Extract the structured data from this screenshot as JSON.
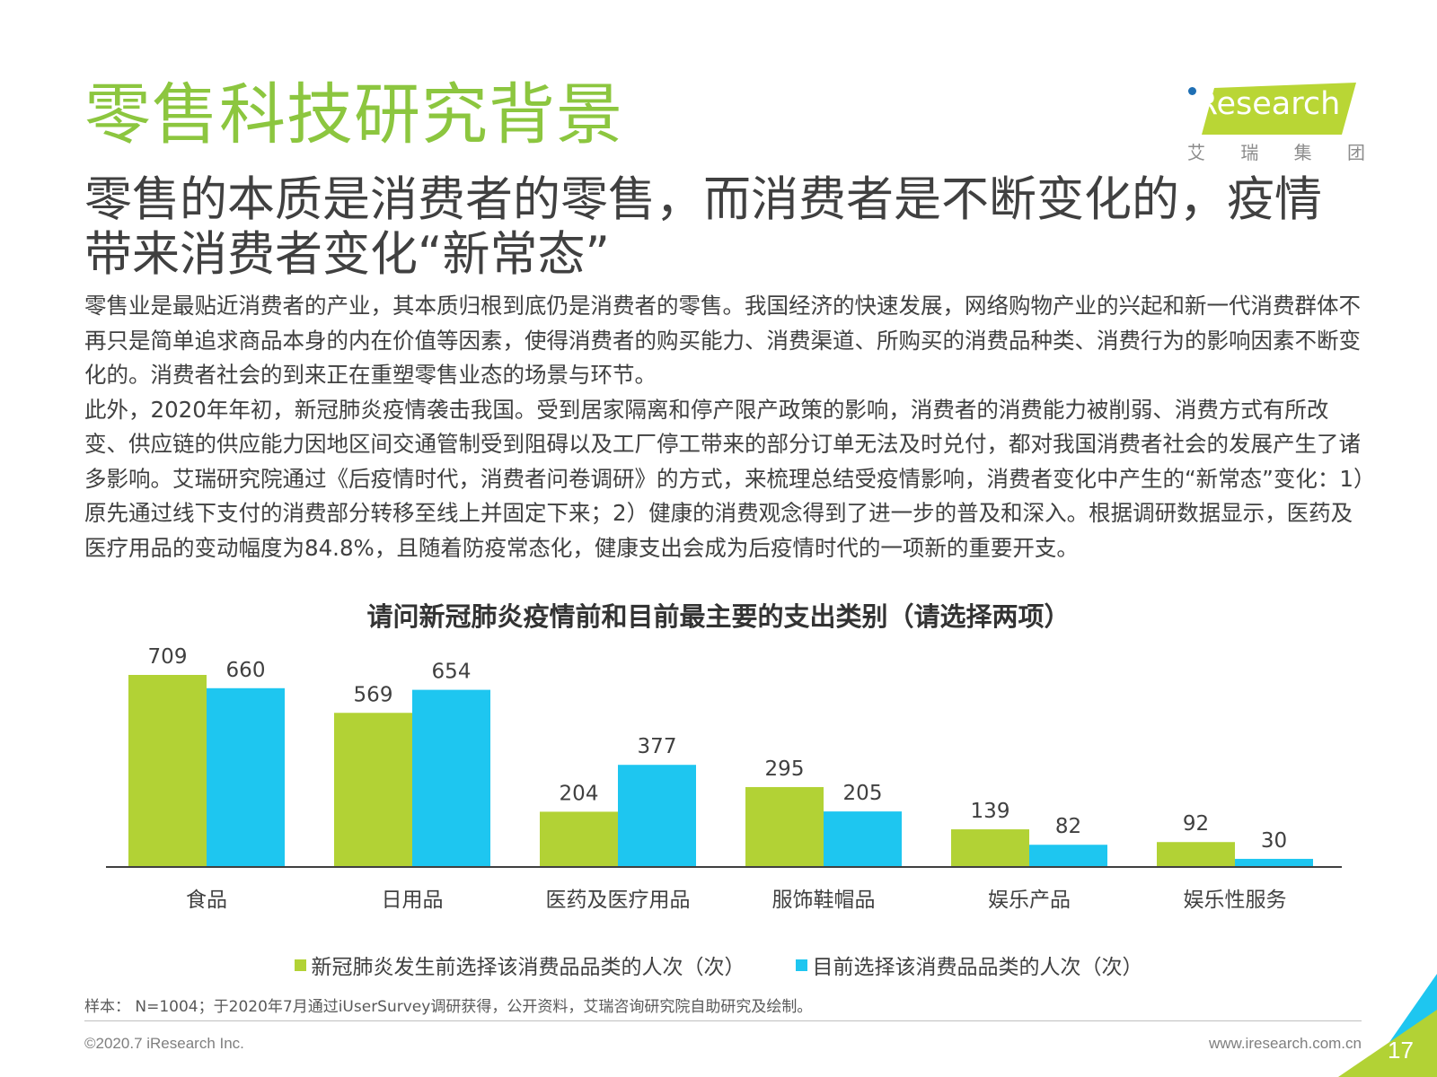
{
  "header": {
    "title": "零售科技研究背景",
    "subtitle": "零售的本质是消费者的零售，而消费者是不断变化的，疫情带来消费者变化“新常态”"
  },
  "logo": {
    "brand": "iResearch",
    "chinese": [
      "艾",
      "瑞",
      "集",
      "团"
    ],
    "colors": {
      "green": "#b9d635",
      "blue": "#1f6fb4"
    }
  },
  "body": {
    "paragraph_1": "零售业是最贴近消费者的产业，其本质归根到底仍是消费者的零售。我国经济的快速发展，网络购物产业的兴起和新一代消费群体不再只是简单追求商品本身的内在价值等因素，使得消费者的购买能力、消费渠道、所购买的消费品种类、消费行为的影响因素不断变化的。消费者社会的到来正在重塑零售业态的场景与环节。",
    "paragraph_2": "此外，2020年年初，新冠肺炎疫情袭击我国。受到居家隔离和停产限产政策的影响，消费者的消费能力被削弱、消费方式有所改变、供应链的供应能力因地区间交通管制受到阻碍以及工厂停工带来的部分订单无法及时兑付，都对我国消费者社会的发展产生了诸多影响。艾瑞研究院通过《后疫情时代，消费者问卷调研》的方式，来梳理总结受疫情影响，消费者变化中产生的“新常态”变化：1）原先通过线下支付的消费部分转移至线上并固定下来；2）健康的消费观念得到了进一步的普及和深入。根据调研数据显示，医药及医疗用品的变动幅度为84.8%，且随着防疫常态化，健康支出会成为后疫情时代的一项新的重要开支。"
  },
  "chart_data": {
    "type": "bar",
    "title": "请问新冠肺炎疫情前和目前最主要的支出类别（请选择两项）",
    "categories": [
      "食品",
      "日用品",
      "医药及医疗用品",
      "服饰鞋帽品",
      "娱乐产品",
      "娱乐性服务"
    ],
    "series": [
      {
        "name": "新冠肺炎发生前选择该消费品品类的人次（次）",
        "color": "#b2d235",
        "values": [
          709,
          569,
          204,
          295,
          139,
          92
        ]
      },
      {
        "name": "目前选择该消费品品类的人次（次）",
        "color": "#1ec6f0",
        "values": [
          660,
          654,
          377,
          205,
          82,
          30
        ]
      }
    ],
    "ylim": [
      0,
      709
    ],
    "grid": false,
    "legend_position": "bottom",
    "data_labels": true
  },
  "footer": {
    "source": "样本： N=1004；于2020年7月通过iUserSurvey调研获得，公开资料，艾瑞咨询研究院自助研究及绘制。",
    "copyright": "©2020.7 iResearch Inc.",
    "website": "www.iresearch.com.cn",
    "page": "17"
  }
}
